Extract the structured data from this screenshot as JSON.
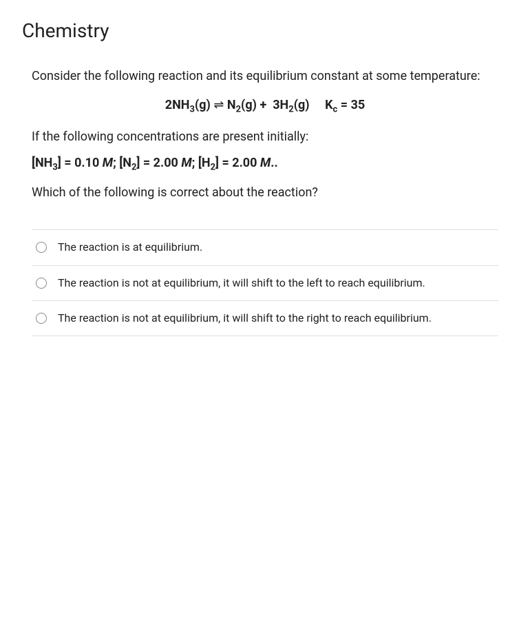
{
  "title": "Chemistry",
  "intro": "Consider the following reaction and its equilibrium constant at some temperature:",
  "equation": {
    "lhs": "2NH",
    "lhs_sub": "3",
    "lhs_state": "(g)",
    "arrow": "⇌",
    "rhs_n2": "N",
    "rhs_n2_sub": "2",
    "rhs_n2_state": "(g)",
    "plus": "+",
    "rhs_h2_coef": "3H",
    "rhs_h2_sub": "2",
    "rhs_h2_state": "(g)",
    "kc_label": "K",
    "kc_sub": "c",
    "kc_value": "= 35"
  },
  "conc_intro": "If the following concentrations are present initially:",
  "concentrations": {
    "nh3_label": "[NH",
    "nh3_sub": "3",
    "nh3_val": "] = 0.10 ",
    "n2_label": "; [N",
    "n2_sub": "2",
    "n2_val": "] = 2.00 ",
    "h2_label": "; [H",
    "h2_sub": "2",
    "h2_val": "] = 2.00 ",
    "unit": "M",
    "tail": ".."
  },
  "question": "Which of the following is correct about the reaction?",
  "options": [
    "The reaction is at equilibrium.",
    "The reaction is not at equilibrium, it will shift to the left to reach equilibrium.",
    "The reaction is not at equilibrium, it will shift to the right to reach equilibrium."
  ],
  "styles": {
    "text_color": "#212121",
    "background_color": "#ffffff",
    "divider_color": "#e0e0e0",
    "radio_border_color": "#8a8a8a",
    "title_fontsize": 28,
    "body_fontsize": 18,
    "option_fontsize": 16
  }
}
